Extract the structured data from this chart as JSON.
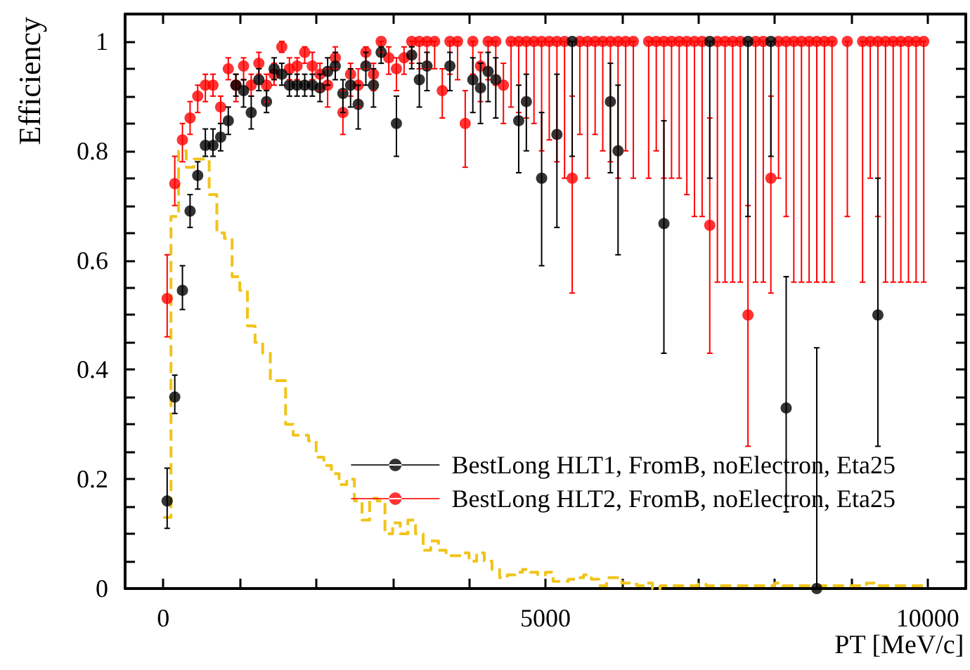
{
  "chart_data": {
    "type": "scatter",
    "xlabel": "PT [MeV/c]",
    "ylabel": "Efficiency",
    "xlim": [
      -500,
      10500
    ],
    "ylim": [
      0,
      1.05
    ],
    "xticks": [
      0,
      {
        "value": 1000,
        "label": null
      },
      {
        "value": 2000,
        "label": null
      },
      {
        "value": 3000,
        "label": null
      },
      {
        "value": 4000,
        "label": null
      },
      5000,
      {
        "value": 6000,
        "label": null
      },
      {
        "value": 7000,
        "label": null
      },
      {
        "value": 8000,
        "label": null
      },
      {
        "value": 9000,
        "label": null
      },
      10000
    ],
    "yticks": [
      0,
      {
        "value": 0.05,
        "label": null
      },
      {
        "value": 0.1,
        "label": null
      },
      {
        "value": 0.15,
        "label": null
      },
      0.2,
      {
        "value": 0.25,
        "label": null
      },
      {
        "value": 0.3,
        "label": null
      },
      {
        "value": 0.35,
        "label": null
      },
      0.4,
      {
        "value": 0.45,
        "label": null
      },
      {
        "value": 0.5,
        "label": null
      },
      {
        "value": 0.55,
        "label": null
      },
      0.6,
      {
        "value": 0.65,
        "label": null
      },
      {
        "value": 0.7,
        "label": null
      },
      {
        "value": 0.75,
        "label": null
      },
      0.8,
      {
        "value": 0.85,
        "label": null
      },
      {
        "value": 0.9,
        "label": null
      },
      {
        "value": 0.95,
        "label": null
      },
      1
    ],
    "grid": false,
    "legend": "bottom right",
    "marker": "circle",
    "x": [
      50,
      150,
      250,
      350,
      450,
      550,
      650,
      750,
      850,
      950,
      1050,
      1150,
      1250,
      1350,
      1450,
      1550,
      1650,
      1750,
      1850,
      1950,
      2050,
      2150,
      2250,
      2350,
      2450,
      2550,
      2650,
      2750,
      2850,
      2950,
      3050,
      3150,
      3250,
      3350,
      3450,
      3550,
      3650,
      3750,
      3850,
      3950,
      4050,
      4150,
      4250,
      4350,
      4450,
      4550,
      4650,
      4750,
      4850,
      4950,
      5050,
      5150,
      5250,
      5350,
      5450,
      5550,
      5650,
      5750,
      5850,
      5950,
      6050,
      6150,
      6350,
      6450,
      6550,
      6650,
      6750,
      6850,
      6950,
      7050,
      7150,
      7250,
      7350,
      7450,
      7550,
      7650,
      7750,
      7850,
      7950,
      8050,
      8150,
      8250,
      8350,
      8450,
      8550,
      8650,
      8750,
      8950,
      9150,
      9250,
      9350,
      9450,
      9550,
      9650,
      9750,
      9850,
      9950
    ],
    "series": [
      {
        "type": "histogram",
        "color": "#f0c419",
        "line_style": "dashed",
        "bins": [
          0,
          100,
          200,
          300,
          400,
          500,
          600,
          700,
          800,
          900,
          1000,
          1100,
          1200,
          1300,
          1400,
          1500,
          1600,
          1700,
          1800,
          1900,
          2000,
          2100,
          2200,
          2300,
          2400,
          2500,
          2600,
          2700,
          2800,
          2900,
          3000,
          3100,
          3200,
          3300,
          3400,
          3500,
          3600,
          3700,
          3800,
          3900,
          4000,
          4100,
          4200,
          4300,
          4400,
          4500,
          4600,
          4700,
          4800,
          4900,
          5000,
          5100,
          5200,
          5300,
          5400,
          5500,
          5600,
          5700,
          5800,
          5900,
          6000,
          6100,
          6200,
          6300,
          6400,
          6500,
          6600,
          6700,
          6800,
          6900,
          7000,
          7100,
          7200,
          7300,
          7400,
          7500,
          7600,
          7700,
          7800,
          7900,
          8000,
          8100,
          8200,
          8300,
          8400,
          8500,
          8600,
          8700,
          8800,
          8900,
          9000,
          9100,
          9200,
          9300,
          9400,
          9500,
          9600,
          9700,
          9800,
          9900,
          10000
        ],
        "values": [
          0.13,
          0.68,
          0.8,
          0.77,
          0.785,
          0.785,
          0.72,
          0.65,
          0.64,
          0.57,
          0.545,
          0.48,
          0.45,
          0.43,
          0.38,
          0.38,
          0.3,
          0.28,
          0.28,
          0.27,
          0.24,
          0.225,
          0.21,
          0.19,
          0.2,
          0.16,
          0.125,
          0.165,
          0.16,
          0.1,
          0.12,
          0.1,
          0.125,
          0.1,
          0.07,
          0.087,
          0.07,
          0.06,
          0.06,
          0.065,
          0.05,
          0.065,
          0.05,
          0.035,
          0.02,
          0.025,
          0.03,
          0.035,
          0.03,
          0.025,
          0.03,
          0.013,
          0.013,
          0.017,
          0.02,
          0.025,
          0.017,
          0.005,
          0.02,
          0.02,
          0.01,
          0.008,
          0.005,
          0.01,
          0,
          0.005,
          0.005,
          0.005,
          0.005,
          0.005,
          0.008,
          0.005,
          0.005,
          0.005,
          0.005,
          0.005,
          0.005,
          0.005,
          0.005,
          0.005,
          0.01,
          0.005,
          0.005,
          0.005,
          0.005,
          0.005,
          0.005,
          0.005,
          0.005,
          0.005,
          0.005,
          0.005,
          0.01,
          0.005,
          0.005,
          0.005,
          0.005,
          0.005,
          0.005,
          0.005
        ]
      },
      {
        "name": "BestLong HLT2, FromB, noElectron, Eta25",
        "color": "#ff0000",
        "values": [
          0.53,
          0.74,
          0.82,
          0.86,
          0.9,
          0.92,
          0.92,
          0.88,
          0.95,
          0.92,
          0.955,
          0.92,
          0.96,
          0.92,
          0.94,
          0.99,
          0.95,
          0.955,
          0.98,
          0.955,
          0.94,
          0.92,
          0.97,
          0.87,
          0.94,
          0.92,
          0.98,
          0.94,
          1,
          0.97,
          0.95,
          0.97,
          1,
          1,
          1,
          1,
          0.91,
          1,
          1,
          0.85,
          1,
          0.955,
          1,
          1,
          0.92,
          1,
          1,
          1,
          1,
          1,
          1,
          1,
          1,
          0.75,
          1,
          1,
          1,
          1,
          1,
          1,
          1,
          1,
          1,
          1,
          1,
          1,
          1,
          1,
          1,
          1,
          0.664,
          1,
          1,
          1,
          1,
          0.5,
          1,
          1,
          0.75,
          1,
          1,
          1,
          1,
          1,
          1,
          1,
          1,
          1,
          1,
          1,
          1,
          1,
          1,
          1,
          1,
          1,
          1
        ],
        "errors": [
          [
            0.46,
            0.61
          ],
          [
            0.7,
            0.79
          ],
          [
            0.78,
            0.85
          ],
          [
            0.83,
            0.89
          ],
          [
            0.87,
            0.92
          ],
          [
            0.89,
            0.94
          ],
          [
            0.9,
            0.94
          ],
          [
            0.85,
            0.9
          ],
          [
            0.93,
            0.97
          ],
          [
            0.89,
            0.94
          ],
          [
            0.93,
            0.97
          ],
          [
            0.9,
            0.94
          ],
          [
            0.94,
            0.98
          ],
          [
            0.89,
            0.94
          ],
          [
            0.92,
            0.96
          ],
          [
            0.98,
            1
          ],
          [
            0.93,
            0.97
          ],
          [
            0.93,
            0.97
          ],
          [
            0.96,
            0.99
          ],
          [
            0.93,
            0.98
          ],
          [
            0.91,
            0.96
          ],
          [
            0.88,
            0.95
          ],
          [
            0.95,
            0.99
          ],
          [
            0.83,
            0.91
          ],
          [
            0.9,
            0.96
          ],
          [
            0.88,
            0.95
          ],
          [
            0.95,
            0.99
          ],
          [
            0.91,
            0.96
          ],
          [
            0.98,
            1
          ],
          [
            0.94,
            0.99
          ],
          [
            0.91,
            0.97
          ],
          [
            0.94,
            0.99
          ],
          [
            0.96,
            1
          ],
          [
            0.95,
            1
          ],
          [
            0.95,
            1
          ],
          [
            0.95,
            1
          ],
          [
            0.86,
            0.95
          ],
          [
            0.94,
            1
          ],
          [
            0.93,
            1
          ],
          [
            0.77,
            0.91
          ],
          [
            0.94,
            1
          ],
          [
            0.89,
            0.98
          ],
          [
            0.93,
            1
          ],
          [
            0.92,
            1
          ],
          [
            0.85,
            0.96
          ],
          [
            0.88,
            1
          ],
          [
            0.87,
            1
          ],
          [
            0.86,
            1
          ],
          [
            0.85,
            1
          ],
          [
            0.8,
            1
          ],
          [
            0.82,
            1
          ],
          [
            0.78,
            1
          ],
          [
            0.75,
            1
          ],
          [
            0.54,
            0.9
          ],
          [
            0.83,
            1
          ],
          [
            0.75,
            1
          ],
          [
            0.83,
            1
          ],
          [
            0.8,
            1
          ],
          [
            0.78,
            1
          ],
          [
            0.75,
            1
          ],
          [
            0.8,
            1
          ],
          [
            0.75,
            1
          ],
          [
            0.75,
            1
          ],
          [
            0.8,
            1
          ],
          [
            0.75,
            1
          ],
          [
            0.75,
            1
          ],
          [
            0.75,
            1
          ],
          [
            0.72,
            1
          ],
          [
            0.68,
            1
          ],
          [
            0.68,
            1
          ],
          [
            0.43,
            0.86
          ],
          [
            0.56,
            1
          ],
          [
            0.56,
            1
          ],
          [
            0.56,
            1
          ],
          [
            0.56,
            1
          ],
          [
            0.26,
            0.7
          ],
          [
            0.56,
            1
          ],
          [
            0.56,
            1
          ],
          [
            0.54,
            0.9
          ],
          [
            0.75,
            1
          ],
          [
            0.68,
            1
          ],
          [
            0.56,
            1
          ],
          [
            0.56,
            1
          ],
          [
            0.56,
            1
          ],
          [
            0.56,
            1
          ],
          [
            0.56,
            1
          ],
          [
            0.56,
            1
          ],
          [
            0.68,
            1
          ],
          [
            0.56,
            1
          ],
          [
            0.75,
            1
          ],
          [
            0.68,
            1
          ],
          [
            0.56,
            1
          ],
          [
            0.56,
            1
          ],
          [
            0.56,
            1
          ],
          [
            0.56,
            1
          ],
          [
            0.56,
            1
          ],
          [
            0.56,
            1
          ]
        ]
      },
      {
        "name": "BestLong HLT1, FromB, noElectron, Eta25",
        "color": "#000000",
        "values": [
          0.16,
          0.35,
          0.545,
          0.69,
          0.755,
          0.81,
          0.81,
          0.825,
          0.855,
          0.92,
          0.91,
          0.87,
          0.93,
          0.89,
          0.95,
          0.94,
          0.92,
          0.92,
          0.92,
          0.92,
          0.915,
          0.945,
          0.955,
          0.905,
          0.92,
          0.885,
          0.955,
          0.92,
          0.98,
          null,
          0.85,
          null,
          0.975,
          0.93,
          0.955,
          null,
          null,
          0.955,
          null,
          null,
          0.93,
          0.915,
          0.945,
          0.93,
          null,
          null,
          0.855,
          0.89,
          null,
          0.75,
          null,
          0.83,
          null,
          1,
          null,
          null,
          null,
          null,
          0.89,
          0.8,
          null,
          null,
          null,
          null,
          0.667,
          null,
          null,
          null,
          null,
          null,
          1,
          null,
          null,
          null,
          null,
          1,
          null,
          null,
          1,
          null,
          0.33,
          null,
          null,
          null,
          0,
          null,
          null,
          null,
          null,
          null,
          0.5,
          null,
          null,
          null,
          null,
          null,
          null
        ],
        "errors": [
          [
            0.11,
            0.22
          ],
          [
            0.32,
            0.39
          ],
          [
            0.51,
            0.59
          ],
          [
            0.66,
            0.72
          ],
          [
            0.73,
            0.78
          ],
          [
            0.79,
            0.84
          ],
          [
            0.79,
            0.84
          ],
          [
            0.8,
            0.85
          ],
          [
            0.83,
            0.88
          ],
          [
            0.9,
            0.94
          ],
          [
            0.88,
            0.93
          ],
          [
            0.84,
            0.9
          ],
          [
            0.91,
            0.95
          ],
          [
            0.87,
            0.91
          ],
          [
            0.93,
            0.97
          ],
          [
            0.92,
            0.96
          ],
          [
            0.9,
            0.94
          ],
          [
            0.9,
            0.94
          ],
          [
            0.9,
            0.94
          ],
          [
            0.9,
            0.94
          ],
          [
            0.89,
            0.94
          ],
          [
            0.92,
            0.97
          ],
          [
            0.93,
            0.98
          ],
          [
            0.87,
            0.93
          ],
          [
            0.88,
            0.95
          ],
          [
            0.84,
            0.92
          ],
          [
            0.92,
            0.98
          ],
          [
            0.88,
            0.95
          ],
          [
            0.96,
            0.99
          ],
          null,
          [
            0.79,
            0.9
          ],
          null,
          [
            0.95,
            0.99
          ],
          [
            0.88,
            0.96
          ],
          [
            0.91,
            0.98
          ],
          null,
          null,
          [
            0.91,
            0.98
          ],
          null,
          null,
          [
            0.87,
            0.97
          ],
          [
            0.85,
            0.96
          ],
          [
            0.89,
            0.98
          ],
          [
            0.86,
            0.97
          ],
          null,
          null,
          [
            0.76,
            0.92
          ],
          [
            0.8,
            0.94
          ],
          null,
          [
            0.59,
            0.87
          ],
          null,
          [
            0.66,
            0.94
          ],
          null,
          [
            0.79,
            1
          ],
          null,
          null,
          null,
          null,
          [
            0.76,
            0.96
          ],
          [
            0.61,
            0.92
          ],
          null,
          null,
          null,
          null,
          [
            0.43,
            0.855
          ],
          null,
          null,
          null,
          null,
          null,
          [
            0.75,
            1
          ],
          null,
          null,
          null,
          null,
          [
            0.68,
            1
          ],
          null,
          null,
          [
            0.79,
            1
          ],
          null,
          [
            0.14,
            0.57
          ],
          null,
          null,
          null,
          [
            0,
            0.44
          ],
          null,
          null,
          null,
          null,
          null,
          [
            0.26,
            0.75
          ],
          null,
          null,
          null,
          null,
          null,
          null
        ]
      }
    ]
  }
}
